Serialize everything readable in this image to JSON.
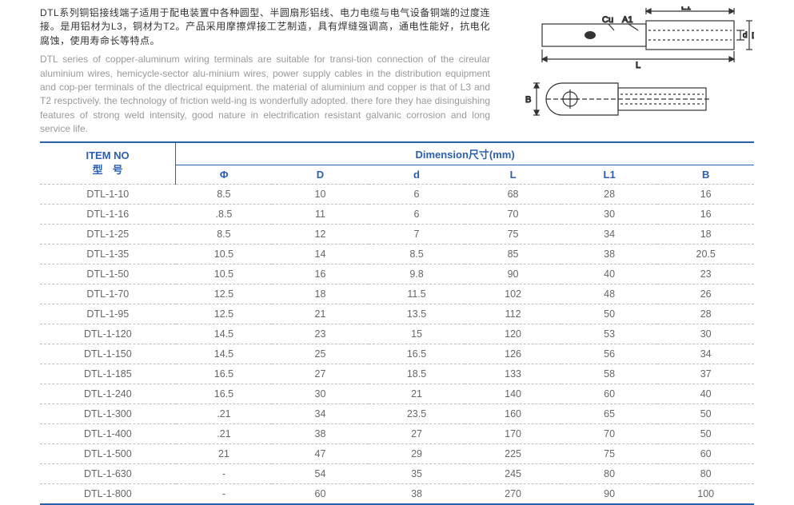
{
  "description": {
    "cn": "DTL系列铜铝接线端子适用于配电装置中各种圆型、半圆扇形铝线、电力电缆与电气设备铜端的过度连接。是用铝材为L3，铜材为T2。产品采用摩擦焊接工艺制造，具有焊缝强调高，通电性能好，抗电化腐蚀，使用寿命长等特点。",
    "en": "DTL series of copper-aluminum wiring terminals are suitable for transi-tion connection of the cireular aluminium wires, hemicycle-sector alu-minium wires, power supply cables in the distribution equipment and cop-per terminals of the dlectrical equipment. the material of aluminium and copper is that of L3 and T2 respctively. the technology of friction weld-ing is wonderfully adopted. there fore they hae disinguishing features of strong weld intensity, good nature in electrification resistant galvanic corrosion and long service life."
  },
  "diagram_labels": {
    "L1": "L1",
    "Cu": "Cu",
    "A1": "A1",
    "d": "d",
    "D": "D",
    "L": "L",
    "B": "B"
  },
  "table": {
    "header": {
      "item_no_en": "ITEM NO",
      "item_no_cn": "型号",
      "dimension": "Dimension尺寸(mm)",
      "cols": [
        "Φ",
        "D",
        "d",
        "L",
        "L1",
        "B"
      ]
    },
    "rows": [
      [
        "DTL-1-10",
        "8.5",
        "10",
        "6",
        "68",
        "28",
        "16"
      ],
      [
        "DTL-1-16",
        ".8.5",
        "11",
        "6",
        "70",
        "30",
        "16"
      ],
      [
        "DTL-1-25",
        "8.5",
        "12",
        "7",
        "75",
        "34",
        "18"
      ],
      [
        "DTL-1-35",
        "10.5",
        "14",
        "8.5",
        "85",
        "38",
        "20.5"
      ],
      [
        "DTL-1-50",
        "10.5",
        "16",
        "9.8",
        "90",
        "40",
        "23"
      ],
      [
        "DTL-1-70",
        "12.5",
        "18",
        "11.5",
        "102",
        "48",
        "26"
      ],
      [
        "DTL-1-95",
        "12.5",
        "21",
        "13.5",
        "112",
        "50",
        "28"
      ],
      [
        "DTL-1-120",
        "14.5",
        "23",
        "15",
        "120",
        "53",
        "30"
      ],
      [
        "DTL-1-150",
        "14.5",
        "25",
        "16.5",
        "126",
        "56",
        "34"
      ],
      [
        "DTL-1-185",
        "16.5",
        "27",
        "18.5",
        "133",
        "58",
        "37"
      ],
      [
        "DTL-1-240",
        "16.5",
        "30",
        "21",
        "140",
        "60",
        "40"
      ],
      [
        "DTL-1-300",
        ".21",
        "34",
        "23.5",
        "160",
        "65",
        "50"
      ],
      [
        "DTL-1-400",
        ".21",
        "38",
        "27",
        "170",
        "70",
        "50"
      ],
      [
        "DTL-1-500",
        "21",
        "47",
        "29",
        "225",
        "75",
        "60"
      ],
      [
        "DTL-1-630",
        "-",
        "54",
        "35",
        "245",
        "80",
        "80"
      ],
      [
        "DTL-1-800",
        "-",
        "60",
        "38",
        "270",
        "90",
        "100"
      ]
    ]
  },
  "style": {
    "accent": "#2a5fb0",
    "text_gray": "#666666",
    "light_gray": "#999999",
    "dash_border": "#bfbfbf",
    "background": "#ffffff",
    "font_size_body": 12.5,
    "font_size_header": 13
  }
}
